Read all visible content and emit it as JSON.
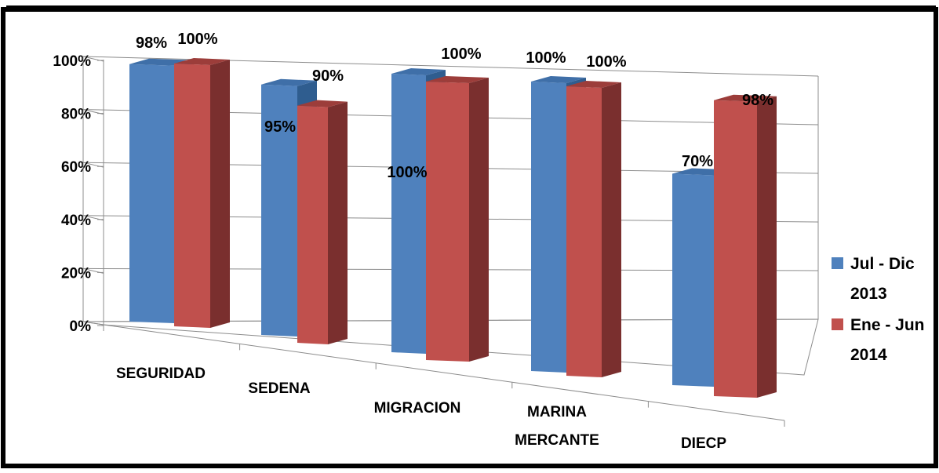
{
  "chart_data": {
    "type": "bar",
    "title": "",
    "xlabel": "",
    "ylabel": "",
    "ylim": [
      0,
      100
    ],
    "yticks": [
      "0%",
      "20%",
      "40%",
      "60%",
      "80%",
      "100%"
    ],
    "categories": [
      "SEGURIDAD",
      "SEDENA",
      "MIGRACION",
      "MARINA MERCANTE",
      "DIECP"
    ],
    "series": [
      {
        "name": "Jul - Dic 2013",
        "color": "#4F81BD",
        "values": [
          98,
          95,
          100,
          100,
          70
        ],
        "labels": [
          "98%",
          "95%",
          "100%",
          "100%",
          "70%"
        ]
      },
      {
        "name": "Ene - Jun 2014",
        "color": "#C0504D",
        "values": [
          100,
          90,
          100,
          100,
          98
        ],
        "labels": [
          "100%",
          "90%",
          "100%",
          "100%",
          "98%"
        ]
      }
    ],
    "legend_position": "right",
    "grid": true,
    "style": "3d-perspective"
  }
}
